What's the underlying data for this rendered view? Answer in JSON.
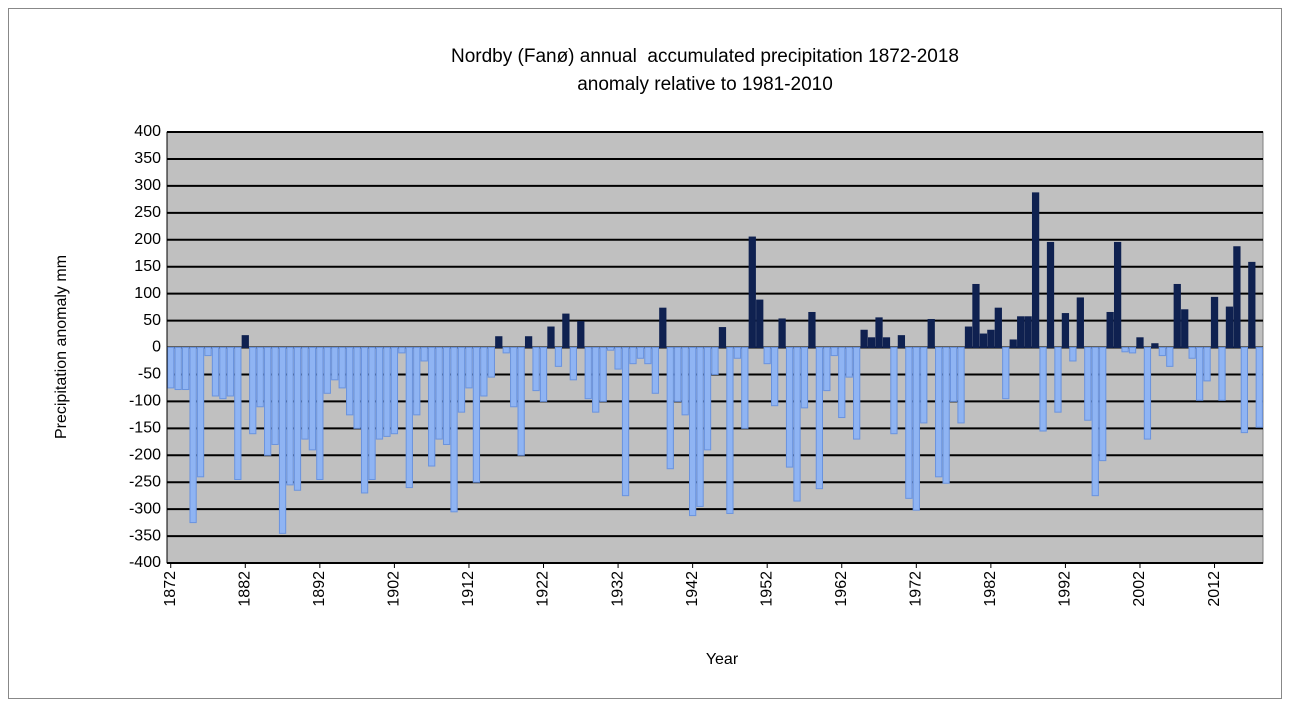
{
  "chart_data": {
    "type": "bar",
    "title": "Nordby (Fanø) annual  accumulated precipitation 1872-2018",
    "subtitle": "anomaly relative to 1981-2010",
    "xlabel": "Year",
    "ylabel": "Precipitation anomaly mm",
    "x": [
      1872,
      1873,
      1874,
      1875,
      1876,
      1877,
      1878,
      1879,
      1880,
      1881,
      1882,
      1883,
      1884,
      1885,
      1886,
      1887,
      1888,
      1889,
      1890,
      1891,
      1892,
      1893,
      1894,
      1895,
      1896,
      1897,
      1898,
      1899,
      1900,
      1901,
      1902,
      1903,
      1904,
      1905,
      1906,
      1907,
      1908,
      1909,
      1910,
      1911,
      1912,
      1913,
      1914,
      1915,
      1916,
      1917,
      1918,
      1919,
      1920,
      1921,
      1922,
      1923,
      1924,
      1925,
      1926,
      1927,
      1928,
      1929,
      1930,
      1931,
      1932,
      1933,
      1934,
      1935,
      1936,
      1937,
      1938,
      1939,
      1940,
      1941,
      1942,
      1943,
      1944,
      1945,
      1946,
      1947,
      1948,
      1949,
      1950,
      1951,
      1952,
      1953,
      1954,
      1955,
      1956,
      1957,
      1958,
      1959,
      1960,
      1961,
      1962,
      1963,
      1964,
      1965,
      1966,
      1967,
      1968,
      1969,
      1970,
      1971,
      1972,
      1973,
      1974,
      1975,
      1976,
      1977,
      1978,
      1979,
      1980,
      1981,
      1982,
      1983,
      1984,
      1985,
      1986,
      1987,
      1988,
      1989,
      1990,
      1991,
      1992,
      1993,
      1994,
      1995,
      1996,
      1997,
      1998,
      1999,
      2000,
      2001,
      2002,
      2003,
      2004,
      2005,
      2006,
      2007,
      2008,
      2009,
      2010,
      2011,
      2012,
      2013,
      2014,
      2015,
      2016,
      2017,
      2018
    ],
    "values": [
      -75,
      -78,
      -78,
      -325,
      -240,
      -15,
      -90,
      -95,
      -90,
      -245,
      22,
      -160,
      -110,
      -200,
      -180,
      -345,
      -255,
      -265,
      -170,
      -190,
      -245,
      -85,
      -60,
      -75,
      -125,
      -150,
      -270,
      -245,
      -170,
      -165,
      -160,
      -10,
      -260,
      -125,
      -25,
      -220,
      -170,
      -180,
      -305,
      -120,
      -75,
      -250,
      -90,
      -55,
      20,
      -10,
      -110,
      -200,
      20,
      -80,
      -100,
      38,
      -35,
      62,
      -60,
      48,
      -95,
      -120,
      -100,
      -5,
      -40,
      -275,
      -30,
      -20,
      -30,
      -85,
      73,
      -225,
      -100,
      -125,
      -312,
      -295,
      -190,
      -50,
      37,
      -308,
      -20,
      -150,
      205,
      88,
      -30,
      -108,
      53,
      -222,
      -285,
      -112,
      65,
      -262,
      -80,
      -15,
      -130,
      -55,
      -170,
      32,
      18,
      55,
      18,
      -160,
      22,
      -280,
      -302,
      -140,
      52,
      -240,
      -252,
      -100,
      -140,
      38,
      117,
      25,
      32,
      73,
      -95,
      14,
      57,
      57,
      287,
      -155,
      195,
      -120,
      63,
      -25,
      92,
      -135,
      -275,
      -210,
      65,
      195,
      -8,
      -10,
      18,
      -170,
      7,
      -15,
      -35,
      117,
      70,
      -20,
      -98,
      -62,
      93,
      -98,
      75,
      187,
      -158,
      158,
      -148
    ],
    "positive_color": "#0f2150",
    "negative_color": "#8fb4f3",
    "xlim": [
      1871.5,
      2018.5
    ],
    "xticks": [
      1872,
      1882,
      1892,
      1902,
      1912,
      1922,
      1932,
      1942,
      1952,
      1962,
      1972,
      1982,
      1992,
      2002,
      2012
    ],
    "ylim": [
      -400,
      400
    ],
    "yticks": [
      -400,
      -350,
      -300,
      -250,
      -200,
      -150,
      -100,
      -50,
      0,
      50,
      100,
      150,
      200,
      250,
      300,
      350,
      400
    ],
    "grid": true
  }
}
